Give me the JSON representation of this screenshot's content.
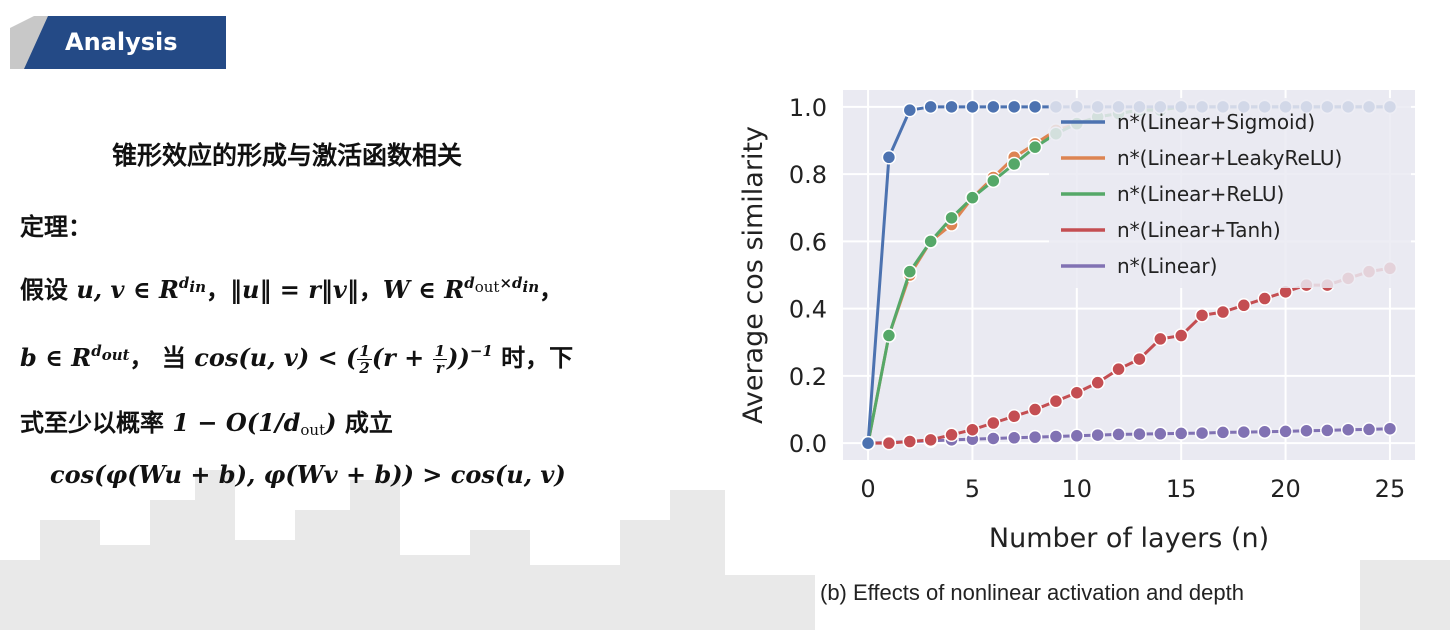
{
  "header": {
    "title": "Analysis"
  },
  "slide": {
    "subtitle": "锥形效应的形成与激活函数相关",
    "theorem_label": "定理：",
    "line1": {
      "lead": "假设 ",
      "vars": "u, v ∈ R",
      "sup1": "d",
      "sup1_sub": "in",
      "sep1": "，",
      "norm": "‖u‖ = r‖v‖",
      "sep2": "，",
      "w": "W ∈ R",
      "sup2": "d",
      "sup2_sub_a": "out",
      "sup2_times": "×d",
      "sup2_sub_b": "in",
      "sep3": "，"
    },
    "line2": {
      "b": "b ∈ R",
      "sup": "d",
      "sup_sub": "out",
      "sep": "，",
      "when": " 当 ",
      "cond": "cos(u, v) < (",
      "frac1_num": "1",
      "frac1_den": "2",
      "mid": "(r + ",
      "frac2_num": "1",
      "frac2_den": "r",
      "end": "))",
      "exp": "−1",
      "tail": " 时，下"
    },
    "line3": {
      "lead": "式至少以概率 ",
      "prob": "1 − O(1/d",
      "prob_sub": "out",
      "prob_end": ")",
      "tail": " 成立"
    },
    "line4": {
      "formula": "cos(φ(Wu + b), φ(Wv + b)) > cos(u, v)"
    }
  },
  "caption": "(b) Effects of nonlinear activation and depth",
  "colors": {
    "banner": "#244a86",
    "plot_bg": "#eaeaf2",
    "sigmoid": "#4c72b0",
    "leaky": "#dd8452",
    "relu": "#55a868",
    "tanh": "#c44e52",
    "linear": "#8172b3"
  },
  "chart_data": {
    "type": "line",
    "xlabel": "Number of layers (n)",
    "ylabel": "Average cos similarity",
    "xlim": [
      -1.2,
      26.2
    ],
    "ylim": [
      -0.05,
      1.05
    ],
    "xticks": [
      0,
      5,
      10,
      15,
      20,
      25
    ],
    "yticks": [
      0.0,
      0.2,
      0.4,
      0.6,
      0.8,
      1.0
    ],
    "grid": true,
    "legend": "top-right",
    "x": [
      0,
      1,
      2,
      3,
      4,
      5,
      6,
      7,
      8,
      9,
      10,
      11,
      12,
      13,
      14,
      15,
      16,
      17,
      18,
      19,
      20,
      21,
      22,
      23,
      24,
      25
    ],
    "series": [
      {
        "name": "n*(Linear+Sigmoid)",
        "color_key": "sigmoid",
        "values": [
          0.0,
          0.85,
          0.99,
          1.0,
          1.0,
          1.0,
          1.0,
          1.0,
          1.0,
          1.0,
          1.0,
          1.0,
          1.0,
          1.0,
          1.0,
          1.0,
          1.0,
          1.0,
          1.0,
          1.0,
          1.0,
          1.0,
          1.0,
          1.0,
          1.0,
          1.0
        ]
      },
      {
        "name": "n*(Linear+LeakyReLU)",
        "color_key": "leaky",
        "values": [
          0.0,
          0.32,
          0.5,
          0.6,
          0.65,
          0.73,
          0.79,
          0.85,
          0.89,
          0.93,
          0.95,
          0.97,
          0.98,
          0.99,
          0.99,
          1.0,
          1.0,
          1.0,
          1.0,
          1.0,
          1.0,
          1.0,
          1.0,
          1.0,
          1.0,
          1.0
        ]
      },
      {
        "name": "n*(Linear+ReLU)",
        "color_key": "relu",
        "values": [
          0.0,
          0.32,
          0.51,
          0.6,
          0.67,
          0.73,
          0.78,
          0.83,
          0.88,
          0.92,
          0.95,
          0.97,
          0.98,
          0.99,
          0.99,
          1.0,
          1.0,
          1.0,
          1.0,
          1.0,
          1.0,
          1.0,
          1.0,
          1.0,
          1.0,
          1.0
        ]
      },
      {
        "name": "n*(Linear+Tanh)",
        "color_key": "tanh",
        "values": [
          0.0,
          0.0,
          0.005,
          0.01,
          0.025,
          0.04,
          0.06,
          0.08,
          0.1,
          0.125,
          0.15,
          0.18,
          0.22,
          0.25,
          0.31,
          0.32,
          0.38,
          0.39,
          0.41,
          0.43,
          0.45,
          0.47,
          0.47,
          0.49,
          0.51,
          0.52
        ]
      },
      {
        "name": "n*(Linear)",
        "color_key": "linear",
        "values": [
          0.0,
          0.002,
          0.005,
          0.007,
          0.01,
          0.012,
          0.014,
          0.016,
          0.018,
          0.02,
          0.022,
          0.024,
          0.026,
          0.027,
          0.028,
          0.029,
          0.03,
          0.032,
          0.033,
          0.034,
          0.035,
          0.037,
          0.038,
          0.04,
          0.041,
          0.043
        ]
      }
    ]
  }
}
